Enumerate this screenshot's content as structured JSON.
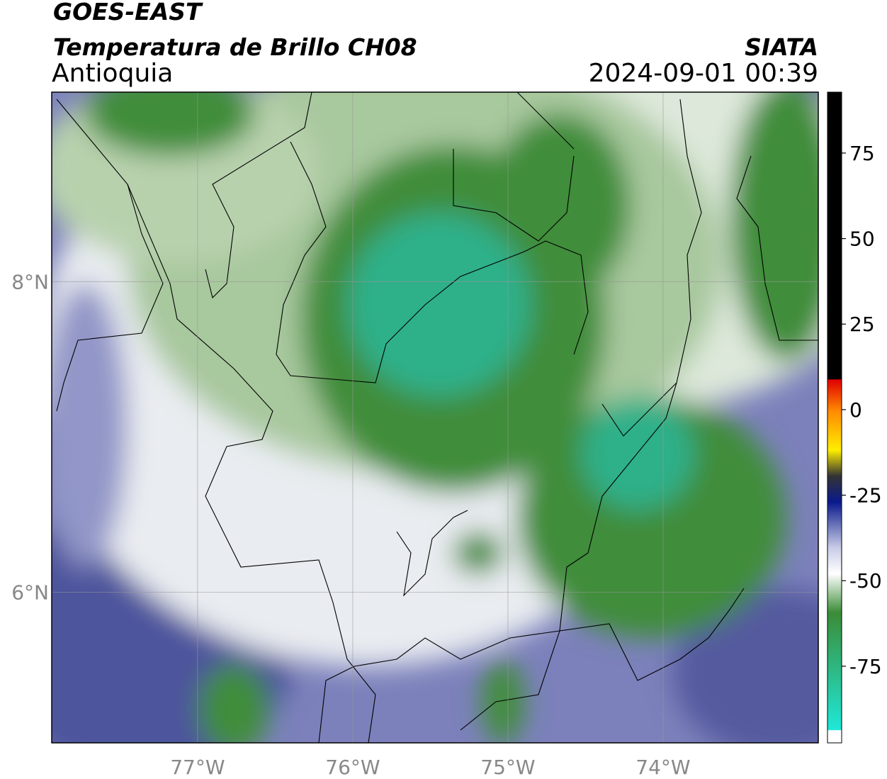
{
  "header": {
    "title": "GOES-EAST",
    "subtitle": "Temperatura de Brillo CH08",
    "region": "Antioquia",
    "source": "SIATA",
    "datetime": "2024-09-01 00:39"
  },
  "map": {
    "lon_range": [
      -77.94,
      -73.0
    ],
    "lat_range": [
      5.03,
      9.22
    ],
    "lon_ticks": [
      {
        "value": -77,
        "label": "77°W"
      },
      {
        "value": -76,
        "label": "76°W"
      },
      {
        "value": -75,
        "label": "75°W"
      },
      {
        "value": -74,
        "label": "74°W"
      }
    ],
    "lat_ticks": [
      {
        "value": 8,
        "label": "8°N"
      },
      {
        "value": 6,
        "label": "6°N"
      }
    ]
  },
  "colorbar": {
    "range": [
      -97.4,
      92.8
    ],
    "ticks": [
      75,
      50,
      25,
      0,
      -25,
      -50,
      -75
    ]
  }
}
